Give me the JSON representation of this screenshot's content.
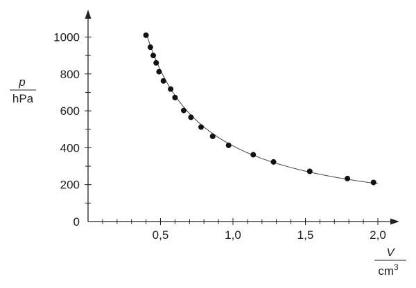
{
  "chart_data": {
    "type": "scatter",
    "title": "",
    "xlabel": {
      "symbol": "V",
      "unit_base": "cm",
      "unit_exp": "3"
    },
    "ylabel": {
      "symbol": "p",
      "unit": "hPa"
    },
    "xlim": [
      0,
      2.05
    ],
    "ylim": [
      0,
      1080
    ],
    "x_ticks": [
      0.5,
      1.0,
      1.5,
      2.0
    ],
    "x_tick_labels": [
      "0,5",
      "1,0",
      "1,5",
      "2,0"
    ],
    "y_ticks": [
      0,
      200,
      400,
      600,
      800,
      1000
    ],
    "y_tick_labels": [
      "0",
      "200",
      "400",
      "600",
      "800",
      "1000"
    ],
    "grid": false,
    "legend": "none",
    "series": [
      {
        "marker": "filled-circle",
        "x": [
          0.4,
          0.43,
          0.45,
          0.47,
          0.49,
          0.52,
          0.57,
          0.6,
          0.66,
          0.71,
          0.78,
          0.86,
          0.97,
          1.14,
          1.28,
          1.53,
          1.79,
          1.97
        ],
        "y": [
          1010,
          945,
          900,
          860,
          812,
          762,
          718,
          672,
          602,
          565,
          512,
          462,
          413,
          362,
          323,
          272,
          233,
          212
        ]
      }
    ],
    "fit_curve": {
      "type": "hyperbola",
      "k": 410,
      "x_range": [
        0.4,
        2.0
      ]
    }
  }
}
